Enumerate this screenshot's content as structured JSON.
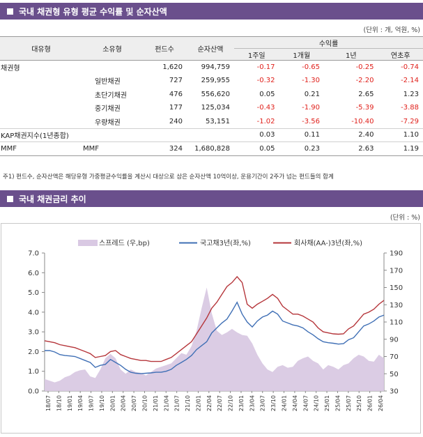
{
  "section1": {
    "title": "국내 채권형 유형 평균 수익률 및 순자산액",
    "unit": "(단위 : 개, 억원, %)"
  },
  "table": {
    "headers": {
      "major": "대유형",
      "minor": "소유형",
      "count": "펀드수",
      "aum": "순자산액",
      "returns": "수익률",
      "w1": "1주일",
      "m1": "1개월",
      "y1": "1년",
      "ytd": "연초후"
    },
    "rows": [
      {
        "major": "채권형",
        "minor": "",
        "count": "1,620",
        "aum": "994,759",
        "w1": "-0.17",
        "m1": "-0.65",
        "y1": "-0.25",
        "ytd": "-0.74"
      },
      {
        "major": "",
        "minor": "일반채권",
        "count": "727",
        "aum": "259,955",
        "w1": "-0.32",
        "m1": "-1.30",
        "y1": "-2.20",
        "ytd": "-2.14"
      },
      {
        "major": "",
        "minor": "초단기채권",
        "count": "476",
        "aum": "556,620",
        "w1": "0.05",
        "m1": "0.21",
        "y1": "2.65",
        "ytd": "1.23"
      },
      {
        "major": "",
        "minor": "중기채권",
        "count": "177",
        "aum": "125,034",
        "w1": "-0.43",
        "m1": "-1.90",
        "y1": "-5.39",
        "ytd": "-3.88"
      },
      {
        "major": "",
        "minor": "우량채권",
        "count": "240",
        "aum": "53,151",
        "w1": "-1.02",
        "m1": "-3.56",
        "y1": "-10.40",
        "ytd": "-7.29"
      },
      {
        "major": "KAP채권지수(1년종합)",
        "minor": "",
        "count": "",
        "aum": "",
        "w1": "0.03",
        "m1": "0.11",
        "y1": "2.40",
        "ytd": "1.10"
      },
      {
        "major": "MMF",
        "minor": "MMF",
        "count": "324",
        "aum": "1,680,828",
        "w1": "0.05",
        "m1": "0.23",
        "y1": "2.63",
        "ytd": "1.19"
      }
    ]
  },
  "note": "주1) 펀드수, 순자산액은 해당유형 가중평균수익률을 계산시 대상으로 삼은 순자산액 10억이상, 운용기간이 2주가 넘는 펀드들의 합계",
  "section2": {
    "title": "국내 채권금리 추이",
    "unit": "(단위 : %)"
  },
  "colors": {
    "header_bg": "#6a4f8c",
    "spread": "#d9c9e3",
    "gov": "#3f6fb5",
    "corp": "#b5353a",
    "negative": "#e0201b"
  },
  "chart_data": {
    "type": "line",
    "legend_position": "top",
    "x_labels": [
      "18/07",
      "18/10",
      "19/01",
      "19/04",
      "19/07",
      "19/10",
      "20/01",
      "20/04",
      "20/07",
      "20/10",
      "21/01",
      "21/04",
      "21/07",
      "21/10",
      "22/01",
      "22/04",
      "22/07",
      "22/10",
      "23/01",
      "23/04",
      "23/07",
      "23/10",
      "24/01",
      "24/04",
      "24/07",
      "24/10",
      "25/01",
      "25/04",
      "25/07",
      "25/10",
      "26/01",
      "26/04"
    ],
    "y_left": {
      "min": 0,
      "max": 7,
      "ticks": [
        "0.0",
        "1.0",
        "2.0",
        "3.0",
        "4.0",
        "5.0",
        "6.0",
        "7.0"
      ]
    },
    "y_right": {
      "min": 30,
      "max": 190,
      "ticks": [
        "30",
        "50",
        "70",
        "90",
        "110",
        "130",
        "150",
        "170",
        "190"
      ]
    },
    "series": [
      {
        "name": "스프레드 (우,bp)",
        "axis": "right",
        "kind": "area",
        "color": "#d9c9e3",
        "values": [
          44,
          42,
          40,
          42,
          46,
          48,
          52,
          54,
          55,
          47,
          45,
          55,
          68,
          73,
          68,
          55,
          50,
          55,
          52,
          51,
          48,
          52,
          56,
          58,
          60,
          62,
          68,
          74,
          72,
          82,
          100,
          126,
          150,
          120,
          100,
          95,
          98,
          102,
          98,
          95,
          94,
          85,
          72,
          62,
          55,
          52,
          58,
          60,
          57,
          58,
          65,
          68,
          70,
          65,
          62,
          55,
          60,
          58,
          55,
          60,
          62,
          68,
          72,
          70,
          65,
          64,
          72,
          68
        ]
      },
      {
        "name": "국고채3년(좌,%)",
        "axis": "left",
        "kind": "line",
        "color": "#3f6fb5",
        "values": [
          2.05,
          2.05,
          1.98,
          1.85,
          1.8,
          1.78,
          1.75,
          1.65,
          1.55,
          1.45,
          1.2,
          1.3,
          1.35,
          1.6,
          1.45,
          1.3,
          1.1,
          0.95,
          0.9,
          0.88,
          0.9,
          0.92,
          0.95,
          0.95,
          1.0,
          1.1,
          1.3,
          1.45,
          1.6,
          1.8,
          2.1,
          2.3,
          2.5,
          2.95,
          3.2,
          3.45,
          3.65,
          4.05,
          4.5,
          3.9,
          3.5,
          3.25,
          3.55,
          3.75,
          3.85,
          4.05,
          3.9,
          3.55,
          3.45,
          3.35,
          3.3,
          3.2,
          3.0,
          2.85,
          2.65,
          2.5,
          2.45,
          2.42,
          2.38,
          2.4,
          2.6,
          2.7,
          3.0,
          3.3,
          3.4,
          3.55,
          3.75,
          3.85
        ]
      },
      {
        "name": "회사채(AA-)3년(좌,%)",
        "axis": "left",
        "kind": "line",
        "color": "#b5353a",
        "values": [
          2.55,
          2.5,
          2.45,
          2.35,
          2.3,
          2.25,
          2.2,
          2.1,
          2.0,
          1.9,
          1.7,
          1.75,
          1.8,
          2.0,
          2.05,
          1.85,
          1.75,
          1.65,
          1.6,
          1.55,
          1.55,
          1.5,
          1.5,
          1.5,
          1.6,
          1.7,
          1.9,
          2.1,
          2.3,
          2.5,
          2.9,
          3.3,
          3.7,
          4.2,
          4.5,
          4.9,
          5.3,
          5.5,
          5.8,
          5.5,
          4.4,
          4.2,
          4.4,
          4.55,
          4.7,
          4.9,
          4.7,
          4.3,
          4.1,
          3.9,
          3.9,
          3.8,
          3.65,
          3.5,
          3.2,
          3.0,
          2.95,
          2.9,
          2.88,
          2.9,
          3.15,
          3.3,
          3.6,
          3.9,
          4.0,
          4.15,
          4.4,
          4.6
        ]
      }
    ]
  }
}
